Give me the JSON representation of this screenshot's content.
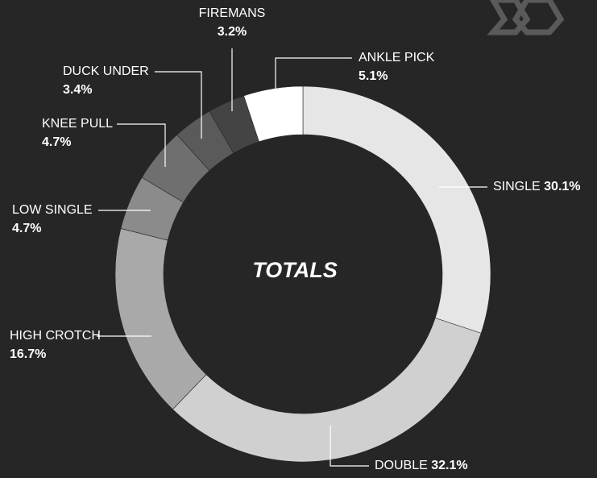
{
  "chart_data": {
    "type": "donut",
    "title": "TOTALS",
    "categories": [
      "SINGLE",
      "DOUBLE",
      "HIGH CROTCH",
      "LOW SINGLE",
      "KNEE PULL",
      "DUCK UNDER",
      "FIREMANS",
      "ANKLE PICK"
    ],
    "values": [
      30.1,
      32.1,
      16.7,
      4.7,
      4.7,
      3.4,
      3.2,
      5.1
    ],
    "value_labels": [
      "30.1%",
      "32.1%",
      "16.7%",
      "4.7%",
      "4.7%",
      "3.4%",
      "3.2%",
      "5.1%"
    ],
    "colors": [
      "#e6e6e6",
      "#d0d0d0",
      "#a9a9a9",
      "#8b8b8b",
      "#6f6f6f",
      "#5a5a5a",
      "#444444",
      "#ffffff"
    ]
  }
}
